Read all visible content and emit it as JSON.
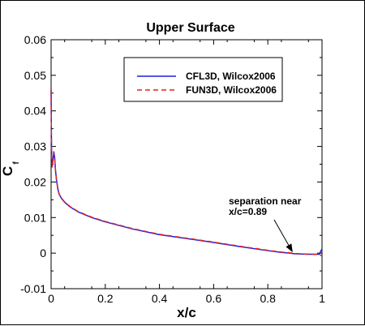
{
  "chart_data": {
    "type": "line",
    "title": "Upper Surface",
    "xlabel": "x/c",
    "ylabel_main": "C",
    "ylabel_sub": "f",
    "xlim": [
      0,
      1
    ],
    "ylim": [
      -0.01,
      0.06
    ],
    "xticks": [
      0,
      0.2,
      0.4,
      0.6,
      0.8,
      1
    ],
    "xtick_labels": [
      "0",
      "0.2",
      "0.4",
      "0.6",
      "0.8",
      "1"
    ],
    "yticks": [
      -0.01,
      0,
      0.01,
      0.02,
      0.03,
      0.04,
      0.05,
      0.06
    ],
    "ytick_labels": [
      "-0.01",
      "0",
      "0.01",
      "0.02",
      "0.03",
      "0.04",
      "0.05",
      "0.06"
    ],
    "legend_position": "top-right",
    "series": [
      {
        "name": "CFL3D, Wilcox2006",
        "color": "#1f1fdc",
        "style": "solid",
        "x": [
          0,
          0.001,
          0.002,
          0.004,
          0.007,
          0.01,
          0.013,
          0.016,
          0.02,
          0.025,
          0.03,
          0.04,
          0.05,
          0.07,
          0.1,
          0.15,
          0.2,
          0.3,
          0.4,
          0.5,
          0.6,
          0.7,
          0.8,
          0.85,
          0.88,
          0.9,
          0.95,
          0.99,
          1
        ],
        "values": [
          0.046,
          0.034,
          0.027,
          0.0245,
          0.0265,
          0.0285,
          0.027,
          0.0235,
          0.0205,
          0.018,
          0.0165,
          0.0152,
          0.0143,
          0.013,
          0.0116,
          0.01,
          0.0088,
          0.0068,
          0.0052,
          0.0041,
          0.003,
          0.0018,
          0.0007,
          0.0002,
          0.0,
          -0.0002,
          -0.0003,
          -0.0003,
          0.0012
        ]
      },
      {
        "name": "FUN3D, Wilcox2006",
        "color": "#e02020",
        "style": "dashed",
        "x": [
          0,
          0.001,
          0.002,
          0.004,
          0.007,
          0.01,
          0.013,
          0.016,
          0.02,
          0.025,
          0.03,
          0.04,
          0.05,
          0.07,
          0.1,
          0.15,
          0.2,
          0.3,
          0.4,
          0.5,
          0.6,
          0.7,
          0.8,
          0.85,
          0.88,
          0.9,
          0.95,
          0.99,
          1
        ],
        "values": [
          0.046,
          0.033,
          0.0265,
          0.0242,
          0.0262,
          0.0281,
          0.0268,
          0.0234,
          0.0206,
          0.0181,
          0.0166,
          0.0153,
          0.0144,
          0.0131,
          0.0117,
          0.0101,
          0.0089,
          0.0069,
          0.0053,
          0.0042,
          0.0031,
          0.0019,
          0.0008,
          0.0003,
          0.0001,
          -0.0001,
          -0.0003,
          -0.0004,
          -0.0008
        ]
      }
    ],
    "annotation": {
      "line1": "separation near",
      "line2": "x/c=0.89",
      "arrow_to": {
        "x": 0.89,
        "y": 0.0
      }
    }
  }
}
